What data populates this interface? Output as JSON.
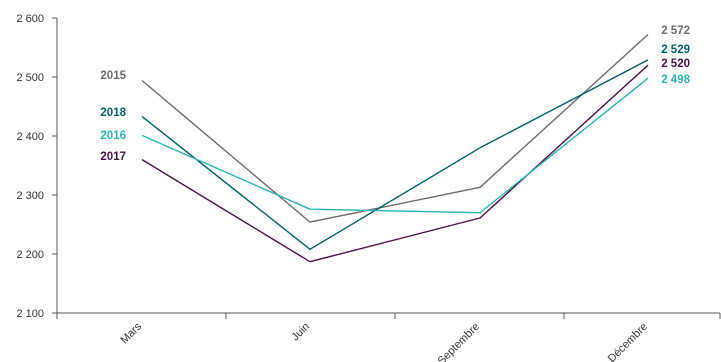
{
  "chart_data": {
    "type": "line",
    "title": "",
    "xlabel": "",
    "ylabel": "",
    "categories": [
      "Mars",
      "Juin",
      "Septembre",
      "Décembre"
    ],
    "ylim": [
      2100,
      2600
    ],
    "yticks": [
      2100,
      2200,
      2300,
      2400,
      2500,
      2600
    ],
    "ytick_labels": [
      "2 100",
      "2 200",
      "2 300",
      "2 400",
      "2 500",
      "2 600"
    ],
    "grid": false,
    "series": [
      {
        "name": "2015",
        "values": [
          2494,
          2254,
          2313,
          2572
        ],
        "color": "#6b6b6b",
        "end_label": "2 572"
      },
      {
        "name": "2018",
        "values": [
          2433,
          2208,
          2380,
          2529
        ],
        "color": "#005f66",
        "end_label": "2 529"
      },
      {
        "name": "2017",
        "values": [
          2360,
          2187,
          2261,
          2520
        ],
        "color": "#4a1048",
        "end_label": "2 520"
      },
      {
        "name": "2016",
        "values": [
          2401,
          2276,
          2270,
          2498
        ],
        "color": "#2ab4b0",
        "end_label": "2 498"
      }
    ]
  }
}
